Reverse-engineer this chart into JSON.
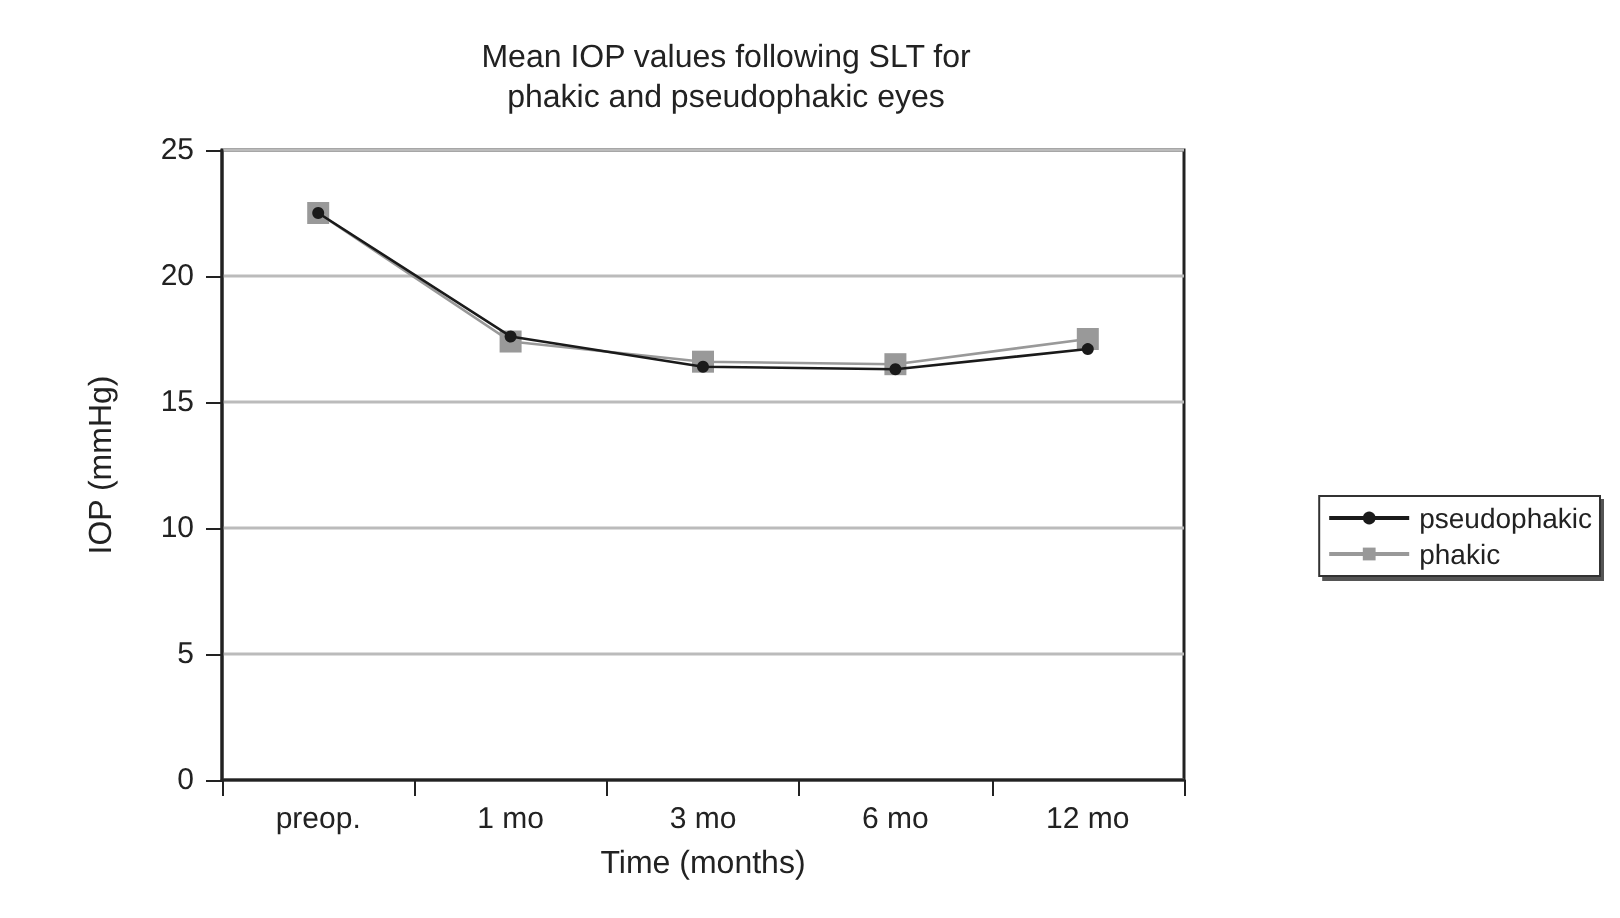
{
  "chart_data": {
    "type": "line",
    "title": "Mean IOP values following SLT for\nphakic and pseudophakic eyes",
    "xlabel": "Time (months)",
    "ylabel": "IOP (mmHg)",
    "categories": [
      "preop.",
      "1 mo",
      "3 mo",
      "6 mo",
      "12 mo"
    ],
    "series": [
      {
        "name": "pseudophakic",
        "color": "#1a1a1a",
        "marker": "circle",
        "values": [
          22.5,
          17.6,
          16.4,
          16.3,
          17.1
        ]
      },
      {
        "name": "phakic",
        "color": "#999999",
        "marker": "square",
        "values": [
          22.5,
          17.4,
          16.6,
          16.5,
          17.5
        ]
      }
    ],
    "ylim": [
      0,
      25
    ],
    "yticks": [
      0,
      5,
      10,
      15,
      20,
      25
    ],
    "grid": "y",
    "legend": "right"
  }
}
